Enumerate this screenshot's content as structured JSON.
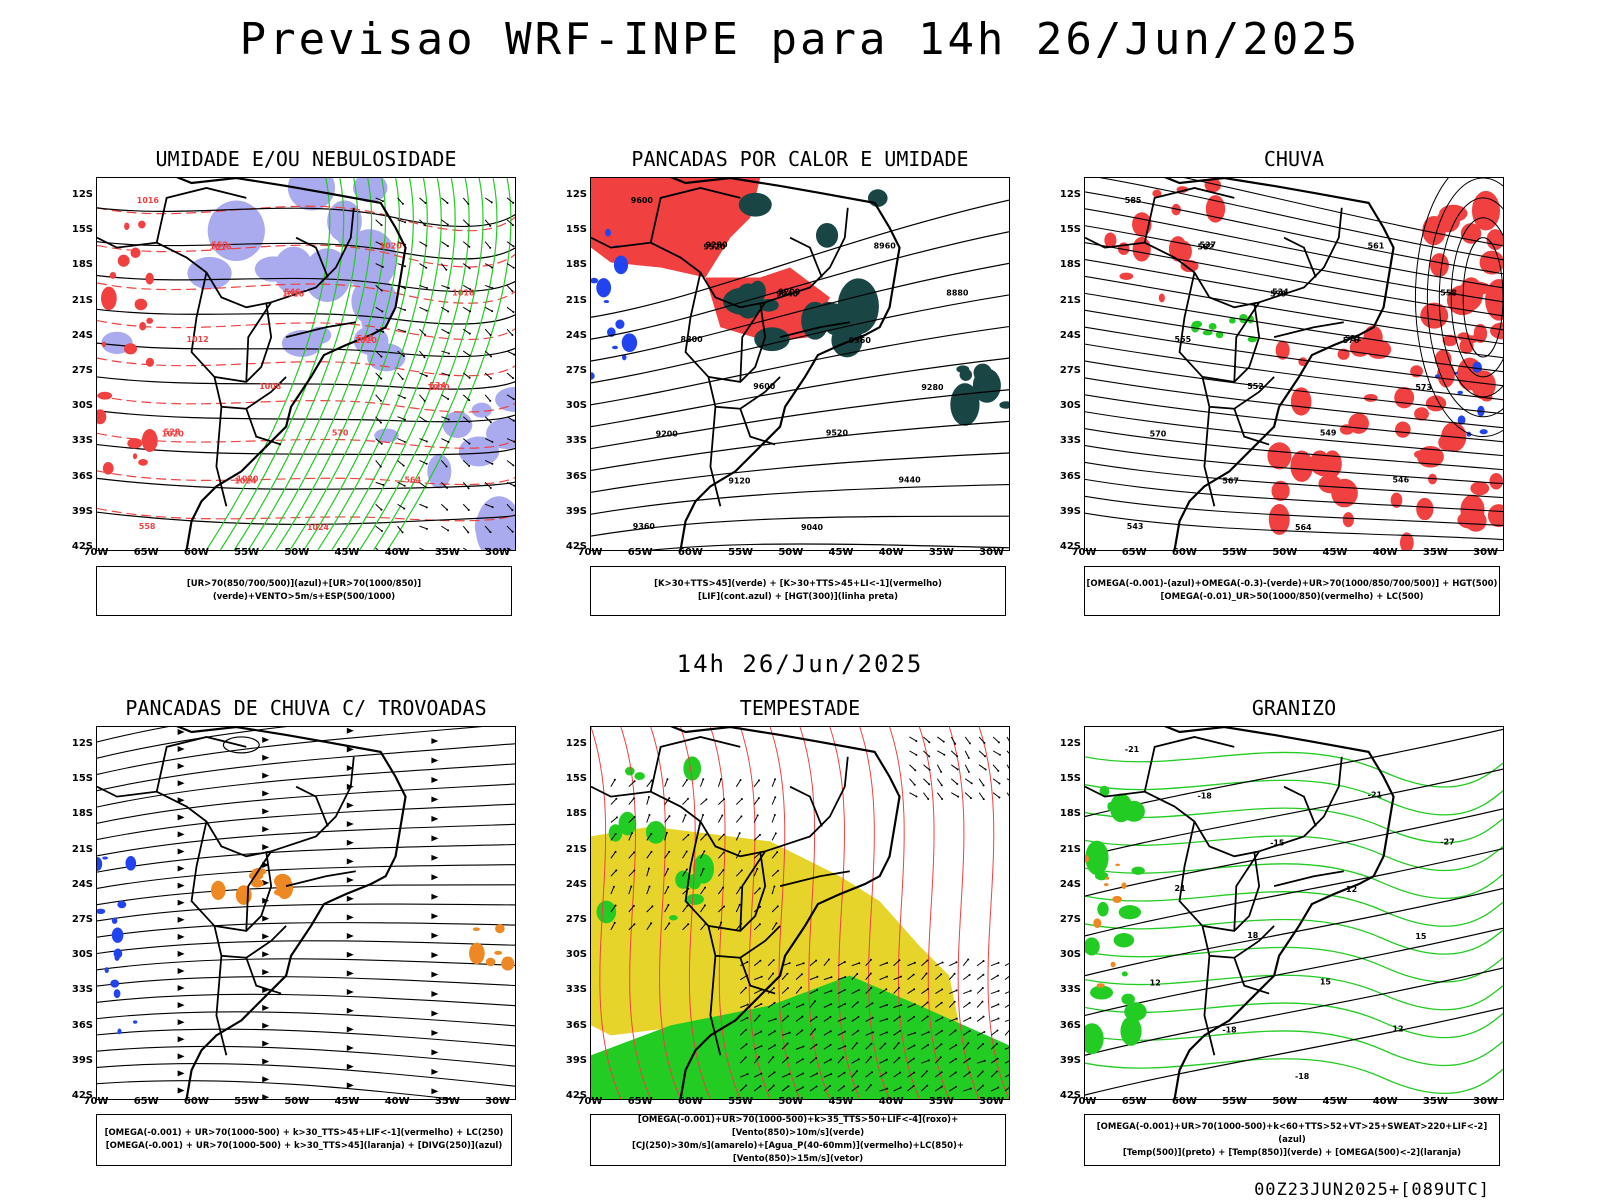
{
  "header": {
    "title": "Previsao WRF-INPE  para 14h 26/Jun/2025"
  },
  "subtitle": "14h 26/Jun/2025",
  "footer": "00Z23JUN2025+[089UTC]",
  "axes": {
    "lat_labels": [
      "12S",
      "15S",
      "18S",
      "21S",
      "24S",
      "27S",
      "30S",
      "33S",
      "36S",
      "39S",
      "42S"
    ],
    "lon_labels": [
      "70W",
      "65W",
      "60W",
      "55W",
      "50W",
      "45W",
      "40W",
      "35W",
      "30W"
    ]
  },
  "colors": {
    "red": "#f04040",
    "green": "#22cc22",
    "blue": "#2244ee",
    "lavender": "#aaaaee",
    "darkteal": "#1a4545",
    "orange": "#ee8822",
    "yellow": "#e6d42a"
  },
  "panels": [
    {
      "title": "UMIDADE E/OU NEBULOSIDADE",
      "legend": [
        "[UR>70(850/700/500)](azul)+[UR>70(1000/850)](verde)+VENTO>5m/s+ESP(500/1000)"
      ],
      "labels": [
        "1016",
        "1016",
        "1016",
        "1020",
        "1020",
        "1020",
        "1024",
        "1024",
        "1020",
        "1016",
        "1012",
        "1008",
        "570",
        "564",
        "558",
        "552",
        "546",
        "540",
        "534",
        "528",
        "1020"
      ]
    },
    {
      "title": "PANCADAS POR CALOR E UMIDADE",
      "legend": [
        "[K>30+TTS>45](verde) + [K>30+TTS>45+LI<-1](vermelho)",
        "[LIF](cont.azul) + [HGT(300)](linha preta)"
      ],
      "labels": [
        "9600",
        "9520",
        "9440",
        "9360",
        "9280",
        "9200",
        "9120",
        "9040",
        "8960",
        "8880",
        "8800",
        "9600",
        "9520",
        "9440",
        "9360",
        "9280",
        "9200"
      ]
    },
    {
      "title": "CHUVA",
      "legend": [
        "[OMEGA(-0.001)-(azul)+OMEGA(-0.3)-(verde)+UR>70(1000/850/700/500)] + HGT(500)",
        "[OMEGA(-0.01)_UR>50(1000/850)(vermelho) + LC(500)"
      ],
      "labels": [
        "585",
        "582",
        "579",
        "576",
        "573",
        "570",
        "567",
        "564",
        "561",
        "558",
        "555",
        "552",
        "549",
        "546",
        "543",
        "537",
        "534",
        "531"
      ]
    },
    {
      "title": "PANCADAS DE CHUVA C/ TROVOADAS",
      "legend": [
        "[OMEGA(-0.001) + UR>70(1000-500) + k>30_TTS>45+LIF<-1](vermelho) + LC(250)",
        "[OMEGA(-0.001) + UR>70(1000-500) + k>30_TTS>45](laranja) + [DIVG(250)](azul)"
      ],
      "labels": []
    },
    {
      "title": "TEMPESTADE",
      "legend": [
        "[OMEGA(-0.001)+UR>70(1000-500)+k>35_TTS>50+LIF<-4](roxo)+[Vento(850)>10m/s](verde)",
        "[CJ(250)>30m/s](amarelo)+[Agua_P(40-60mm)](vermelho)+LC(850)+[Vento(850)>15m/s](vetor)"
      ],
      "labels": []
    },
    {
      "title": "GRANIZO",
      "legend": [
        "[OMEGA(-0.001)+UR>70(1000-500)+k<60+TTS>52+VT>25+SWEAT>220+LIF<-2](azul)",
        "[Temp(500)](preto) + [Temp(850)](verde) + [OMEGA(500)<-2](laranja)"
      ],
      "labels": [
        "-21",
        "-18",
        "-15",
        "-12",
        "15",
        "12",
        "-18",
        "-18",
        "-21",
        "-27",
        "21",
        "18",
        "15",
        "12"
      ]
    }
  ]
}
